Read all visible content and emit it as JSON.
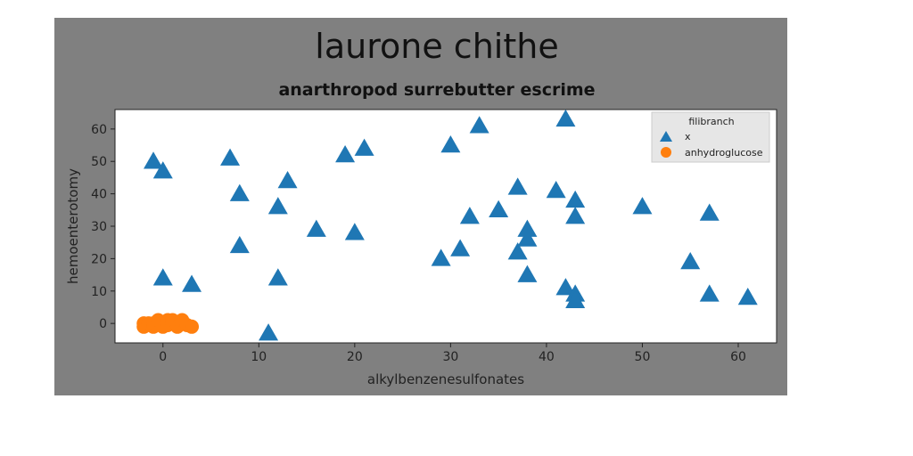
{
  "chart_data": {
    "type": "scatter",
    "title": "laurone chithe",
    "subtitle": "anarthropod surrebutter escrime",
    "xlabel": "alkylbenzenesulfonates",
    "ylabel": "hemoenterotomy",
    "xlim": [
      -5,
      64
    ],
    "ylim": [
      -6,
      66
    ],
    "xticks": [
      0,
      10,
      20,
      30,
      40,
      50,
      60
    ],
    "yticks": [
      0,
      10,
      20,
      30,
      40,
      50,
      60
    ],
    "grid": false,
    "legend": {
      "title": "filibranch",
      "position": "top-right"
    },
    "colors": {
      "frame": "#808080",
      "x": "#1f77b4",
      "anhydroglucose": "#ff7f0e"
    },
    "series": [
      {
        "name": "x",
        "marker": "triangle",
        "points": [
          [
            -1,
            50
          ],
          [
            0,
            47
          ],
          [
            0,
            14
          ],
          [
            3,
            12
          ],
          [
            7,
            51
          ],
          [
            8,
            40
          ],
          [
            8,
            24
          ],
          [
            11,
            -3
          ],
          [
            12,
            36
          ],
          [
            12,
            14
          ],
          [
            13,
            44
          ],
          [
            16,
            29
          ],
          [
            19,
            52
          ],
          [
            20,
            28
          ],
          [
            21,
            54
          ],
          [
            29,
            20
          ],
          [
            30,
            55
          ],
          [
            31,
            23
          ],
          [
            32,
            33
          ],
          [
            33,
            61
          ],
          [
            35,
            35
          ],
          [
            37,
            42
          ],
          [
            37,
            22
          ],
          [
            38,
            29
          ],
          [
            38,
            26
          ],
          [
            38,
            15
          ],
          [
            41,
            41
          ],
          [
            42,
            63
          ],
          [
            42,
            11
          ],
          [
            43,
            38
          ],
          [
            43,
            33
          ],
          [
            43,
            9
          ],
          [
            43,
            7
          ],
          [
            50,
            36
          ],
          [
            55,
            19
          ],
          [
            57,
            34
          ],
          [
            57,
            9
          ],
          [
            61,
            8
          ]
        ]
      },
      {
        "name": "anhydroglucose",
        "marker": "circle",
        "points": [
          [
            -2,
            0
          ],
          [
            -2,
            -1
          ],
          [
            -1.5,
            0
          ],
          [
            -1,
            -1
          ],
          [
            -1,
            0
          ],
          [
            -0.5,
            1
          ],
          [
            0,
            0
          ],
          [
            0,
            -1
          ],
          [
            0.5,
            1
          ],
          [
            0.5,
            -0.5
          ],
          [
            1,
            0
          ],
          [
            1,
            1
          ],
          [
            1.5,
            -1
          ],
          [
            2,
            0
          ],
          [
            2,
            1
          ],
          [
            2.5,
            -0.5
          ],
          [
            3,
            -1
          ]
        ]
      }
    ]
  }
}
